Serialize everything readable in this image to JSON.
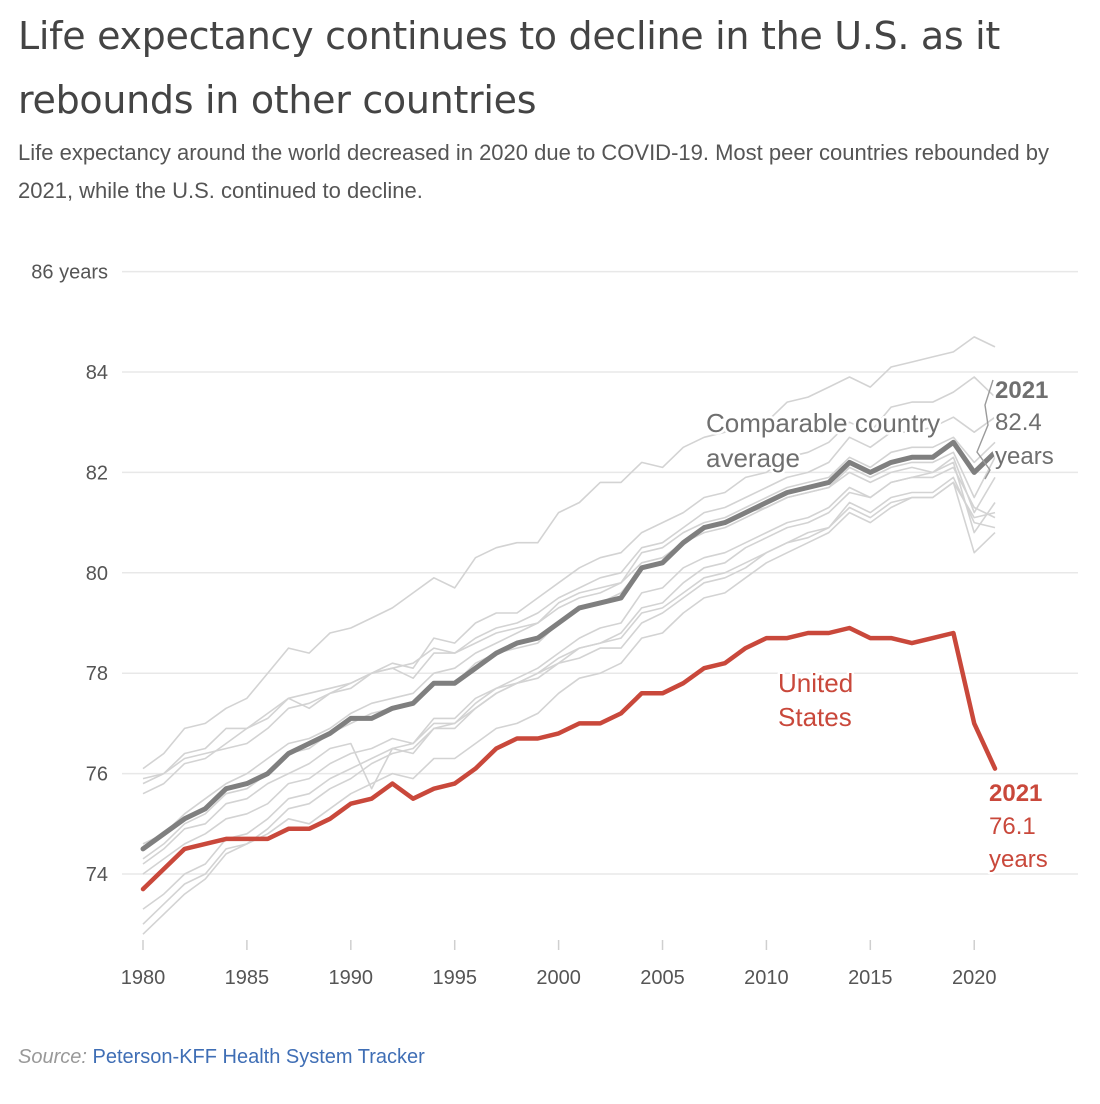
{
  "title": "Life expectancy continues to decline in the U.S. as it rebounds in other countries",
  "subtitle": "Life expectancy around the world decreased in 2020 due to COVID-19. Most peer countries rebounded by 2021, while the U.S. continued to decline.",
  "source_label": "Source:",
  "source_text": "Peterson-KFF Health System Tracker",
  "colors": {
    "us": "#c9483b",
    "comparable": "#7f7f7f",
    "peers": "#d3d3d3",
    "grid": "#e8e8e8",
    "axis_text": "#555555"
  },
  "chart_data": {
    "type": "line",
    "title": "Life expectancy continues to decline in the U.S. as it rebounds in other countries",
    "xlim": [
      1980,
      2021
    ],
    "ylim": [
      73,
      86
    ],
    "y_ticks": [
      74,
      76,
      78,
      80,
      82,
      84,
      86
    ],
    "y_tick_labels": [
      "74",
      "76",
      "78",
      "80",
      "82",
      "84",
      "86 years"
    ],
    "x_ticks": [
      1980,
      1985,
      1990,
      1995,
      2000,
      2005,
      2010,
      2015,
      2020
    ],
    "x_tick_labels": [
      "1980",
      "1985",
      "1990",
      "1995",
      "2000",
      "2005",
      "2010",
      "2015",
      "2020"
    ],
    "x": [
      1980,
      1981,
      1982,
      1983,
      1984,
      1985,
      1986,
      1987,
      1988,
      1989,
      1990,
      1991,
      1992,
      1993,
      1994,
      1995,
      1996,
      1997,
      1998,
      1999,
      2000,
      2001,
      2002,
      2003,
      2004,
      2005,
      2006,
      2007,
      2008,
      2009,
      2010,
      2011,
      2012,
      2013,
      2014,
      2015,
      2016,
      2017,
      2018,
      2019,
      2020,
      2021
    ],
    "grid": true,
    "series": [
      {
        "key": "us",
        "name": "United States",
        "emphasis": true,
        "values": [
          73.7,
          74.1,
          74.5,
          74.6,
          74.7,
          74.7,
          74.7,
          74.9,
          74.9,
          75.1,
          75.4,
          75.5,
          75.8,
          75.5,
          75.7,
          75.8,
          76.1,
          76.5,
          76.7,
          76.7,
          76.8,
          77.0,
          77.0,
          77.2,
          77.6,
          77.6,
          77.8,
          78.1,
          78.2,
          78.5,
          78.7,
          78.7,
          78.8,
          78.8,
          78.9,
          78.7,
          78.7,
          78.6,
          78.7,
          78.8,
          77.0,
          76.1
        ]
      },
      {
        "key": "comparable",
        "name": "Comparable country average",
        "emphasis": true,
        "values": [
          74.5,
          74.8,
          75.1,
          75.3,
          75.7,
          75.8,
          76.0,
          76.4,
          76.6,
          76.8,
          77.1,
          77.1,
          77.3,
          77.4,
          77.8,
          77.8,
          78.1,
          78.4,
          78.6,
          78.7,
          79.0,
          79.3,
          79.4,
          79.5,
          80.1,
          80.2,
          80.6,
          80.9,
          81.0,
          81.2,
          81.4,
          81.6,
          81.7,
          81.8,
          82.2,
          82.0,
          82.2,
          82.3,
          82.3,
          82.6,
          82.0,
          82.4
        ]
      },
      {
        "key": "peer",
        "values": [
          76.1,
          76.4,
          76.9,
          77.0,
          77.3,
          77.5,
          78.0,
          78.5,
          78.4,
          78.8,
          78.9,
          79.1,
          79.3,
          79.6,
          79.9,
          79.7,
          80.3,
          80.5,
          80.6,
          80.6,
          81.2,
          81.4,
          81.8,
          81.8,
          82.2,
          82.1,
          82.5,
          82.7,
          82.8,
          83.0,
          83.0,
          83.4,
          83.5,
          83.7,
          83.9,
          83.7,
          84.1,
          84.2,
          84.3,
          84.4,
          84.7,
          84.5
        ]
      },
      {
        "key": "peer",
        "values": [
          75.6,
          75.8,
          76.2,
          76.3,
          76.6,
          76.9,
          77.2,
          77.5,
          77.3,
          77.6,
          77.8,
          78.0,
          78.2,
          78.1,
          78.7,
          78.6,
          79.0,
          79.2,
          79.2,
          79.5,
          79.8,
          80.1,
          80.3,
          80.4,
          80.8,
          81.0,
          81.2,
          81.5,
          81.6,
          81.9,
          82.0,
          82.3,
          82.4,
          82.6,
          83.0,
          82.8,
          83.3,
          83.4,
          83.4,
          83.6,
          83.9,
          83.5
        ]
      },
      {
        "key": "peer",
        "values": [
          75.9,
          76.0,
          76.3,
          76.4,
          76.5,
          76.6,
          76.9,
          77.3,
          77.4,
          77.6,
          77.7,
          78.0,
          78.1,
          78.2,
          78.5,
          78.4,
          78.7,
          78.9,
          79.0,
          79.2,
          79.5,
          79.7,
          79.9,
          80.0,
          80.5,
          80.6,
          80.9,
          81.2,
          81.3,
          81.5,
          81.7,
          81.9,
          82.0,
          82.2,
          82.7,
          82.5,
          82.8,
          82.8,
          82.9,
          83.1,
          82.8,
          83.1
        ]
      },
      {
        "key": "peer",
        "values": [
          74.3,
          74.6,
          75.0,
          75.2,
          75.6,
          75.7,
          76.0,
          76.4,
          76.5,
          76.8,
          77.0,
          77.2,
          77.3,
          77.4,
          77.8,
          77.8,
          78.2,
          78.4,
          78.5,
          78.6,
          79.0,
          79.3,
          79.4,
          79.6,
          80.1,
          80.2,
          80.6,
          80.9,
          81.0,
          81.2,
          81.3,
          81.5,
          81.6,
          81.7,
          82.1,
          81.9,
          82.1,
          82.2,
          82.2,
          82.4,
          81.5,
          82.3
        ]
      },
      {
        "key": "peer",
        "values": [
          74.6,
          74.8,
          75.2,
          75.5,
          75.8,
          76.0,
          76.3,
          76.6,
          76.7,
          76.9,
          77.2,
          77.4,
          77.5,
          77.6,
          78.0,
          78.1,
          78.4,
          78.6,
          78.8,
          79.0,
          79.3,
          79.5,
          79.6,
          79.8,
          80.4,
          80.5,
          80.8,
          81.0,
          81.1,
          81.3,
          81.5,
          81.7,
          81.8,
          81.9,
          82.3,
          82.1,
          82.4,
          82.5,
          82.5,
          82.7,
          82.2,
          82.6
        ]
      },
      {
        "key": "peer",
        "values": [
          73.3,
          73.6,
          74.0,
          74.2,
          74.7,
          74.8,
          75.1,
          75.5,
          75.6,
          75.9,
          76.1,
          76.3,
          76.5,
          76.4,
          76.9,
          76.9,
          77.3,
          77.6,
          77.8,
          77.9,
          78.2,
          78.5,
          78.6,
          78.8,
          79.3,
          79.4,
          79.8,
          80.1,
          80.2,
          80.5,
          80.7,
          80.9,
          81.0,
          81.2,
          81.6,
          81.5,
          81.8,
          81.9,
          82.0,
          82.2,
          80.8,
          81.4
        ]
      },
      {
        "key": "peer",
        "values": [
          72.8,
          73.2,
          73.6,
          73.9,
          74.4,
          74.6,
          74.9,
          75.3,
          75.4,
          75.7,
          75.9,
          76.2,
          76.4,
          76.5,
          76.9,
          77.0,
          77.4,
          77.7,
          77.9,
          78.1,
          78.4,
          78.7,
          78.9,
          79.0,
          79.6,
          79.7,
          80.1,
          80.3,
          80.4,
          80.6,
          80.8,
          81.0,
          81.1,
          81.3,
          81.7,
          81.5,
          81.8,
          81.9,
          81.9,
          82.1,
          81.3,
          81.1
        ]
      },
      {
        "key": "peer",
        "values": [
          73.0,
          73.4,
          73.8,
          74.0,
          74.5,
          74.6,
          74.8,
          75.1,
          75.0,
          75.3,
          75.6,
          75.8,
          76.0,
          75.9,
          76.3,
          76.3,
          76.6,
          76.9,
          77.0,
          77.2,
          77.6,
          77.9,
          78.0,
          78.2,
          78.7,
          78.8,
          79.2,
          79.5,
          79.6,
          79.9,
          80.2,
          80.4,
          80.6,
          80.8,
          81.2,
          81.0,
          81.3,
          81.5,
          81.5,
          81.8,
          80.4,
          80.8
        ]
      },
      {
        "key": "peer",
        "values": [
          75.8,
          76.0,
          76.4,
          76.5,
          76.9,
          76.9,
          77.1,
          77.5,
          77.6,
          77.7,
          77.8,
          78.0,
          78.1,
          77.9,
          78.4,
          78.4,
          78.6,
          78.8,
          78.9,
          79.0,
          79.4,
          79.6,
          79.7,
          79.8,
          80.2,
          80.3,
          80.6,
          80.8,
          80.9,
          81.1,
          81.3,
          81.5,
          81.6,
          81.7,
          82.0,
          81.8,
          82.0,
          82.1,
          82.0,
          82.3,
          81.2,
          81.9
        ]
      },
      {
        "key": "peer",
        "values": [
          74.2,
          74.5,
          74.9,
          75.0,
          75.4,
          75.5,
          75.8,
          76.0,
          76.2,
          76.5,
          76.6,
          75.7,
          76.5,
          76.6,
          77.0,
          77.0,
          77.3,
          77.6,
          77.8,
          78.0,
          78.2,
          78.3,
          78.5,
          78.5,
          79.0,
          79.2,
          79.5,
          79.8,
          79.9,
          80.1,
          80.4,
          80.6,
          80.7,
          80.9,
          81.3,
          81.1,
          81.4,
          81.5,
          81.5,
          81.8,
          81.1,
          81.2
        ]
      },
      {
        "key": "peer",
        "values": [
          74.0,
          74.3,
          74.6,
          74.8,
          75.1,
          75.2,
          75.4,
          75.8,
          75.9,
          76.2,
          76.4,
          76.5,
          76.7,
          76.6,
          77.1,
          77.1,
          77.5,
          77.7,
          77.8,
          78.0,
          78.3,
          78.5,
          78.6,
          78.7,
          79.2,
          79.3,
          79.6,
          79.9,
          80.0,
          80.2,
          80.4,
          80.6,
          80.8,
          80.9,
          81.4,
          81.2,
          81.5,
          81.6,
          81.6,
          81.9,
          81.0,
          80.9
        ]
      }
    ],
    "annotations": [
      {
        "key": "comparable_label",
        "lines": [
          "Comparable country",
          "average"
        ]
      },
      {
        "key": "comparable_end",
        "lines": [
          "2021",
          "82.4",
          "years"
        ]
      },
      {
        "key": "us_label",
        "lines": [
          "United",
          "States"
        ]
      },
      {
        "key": "us_end",
        "lines": [
          "2021",
          "76.1",
          "years"
        ]
      }
    ]
  }
}
